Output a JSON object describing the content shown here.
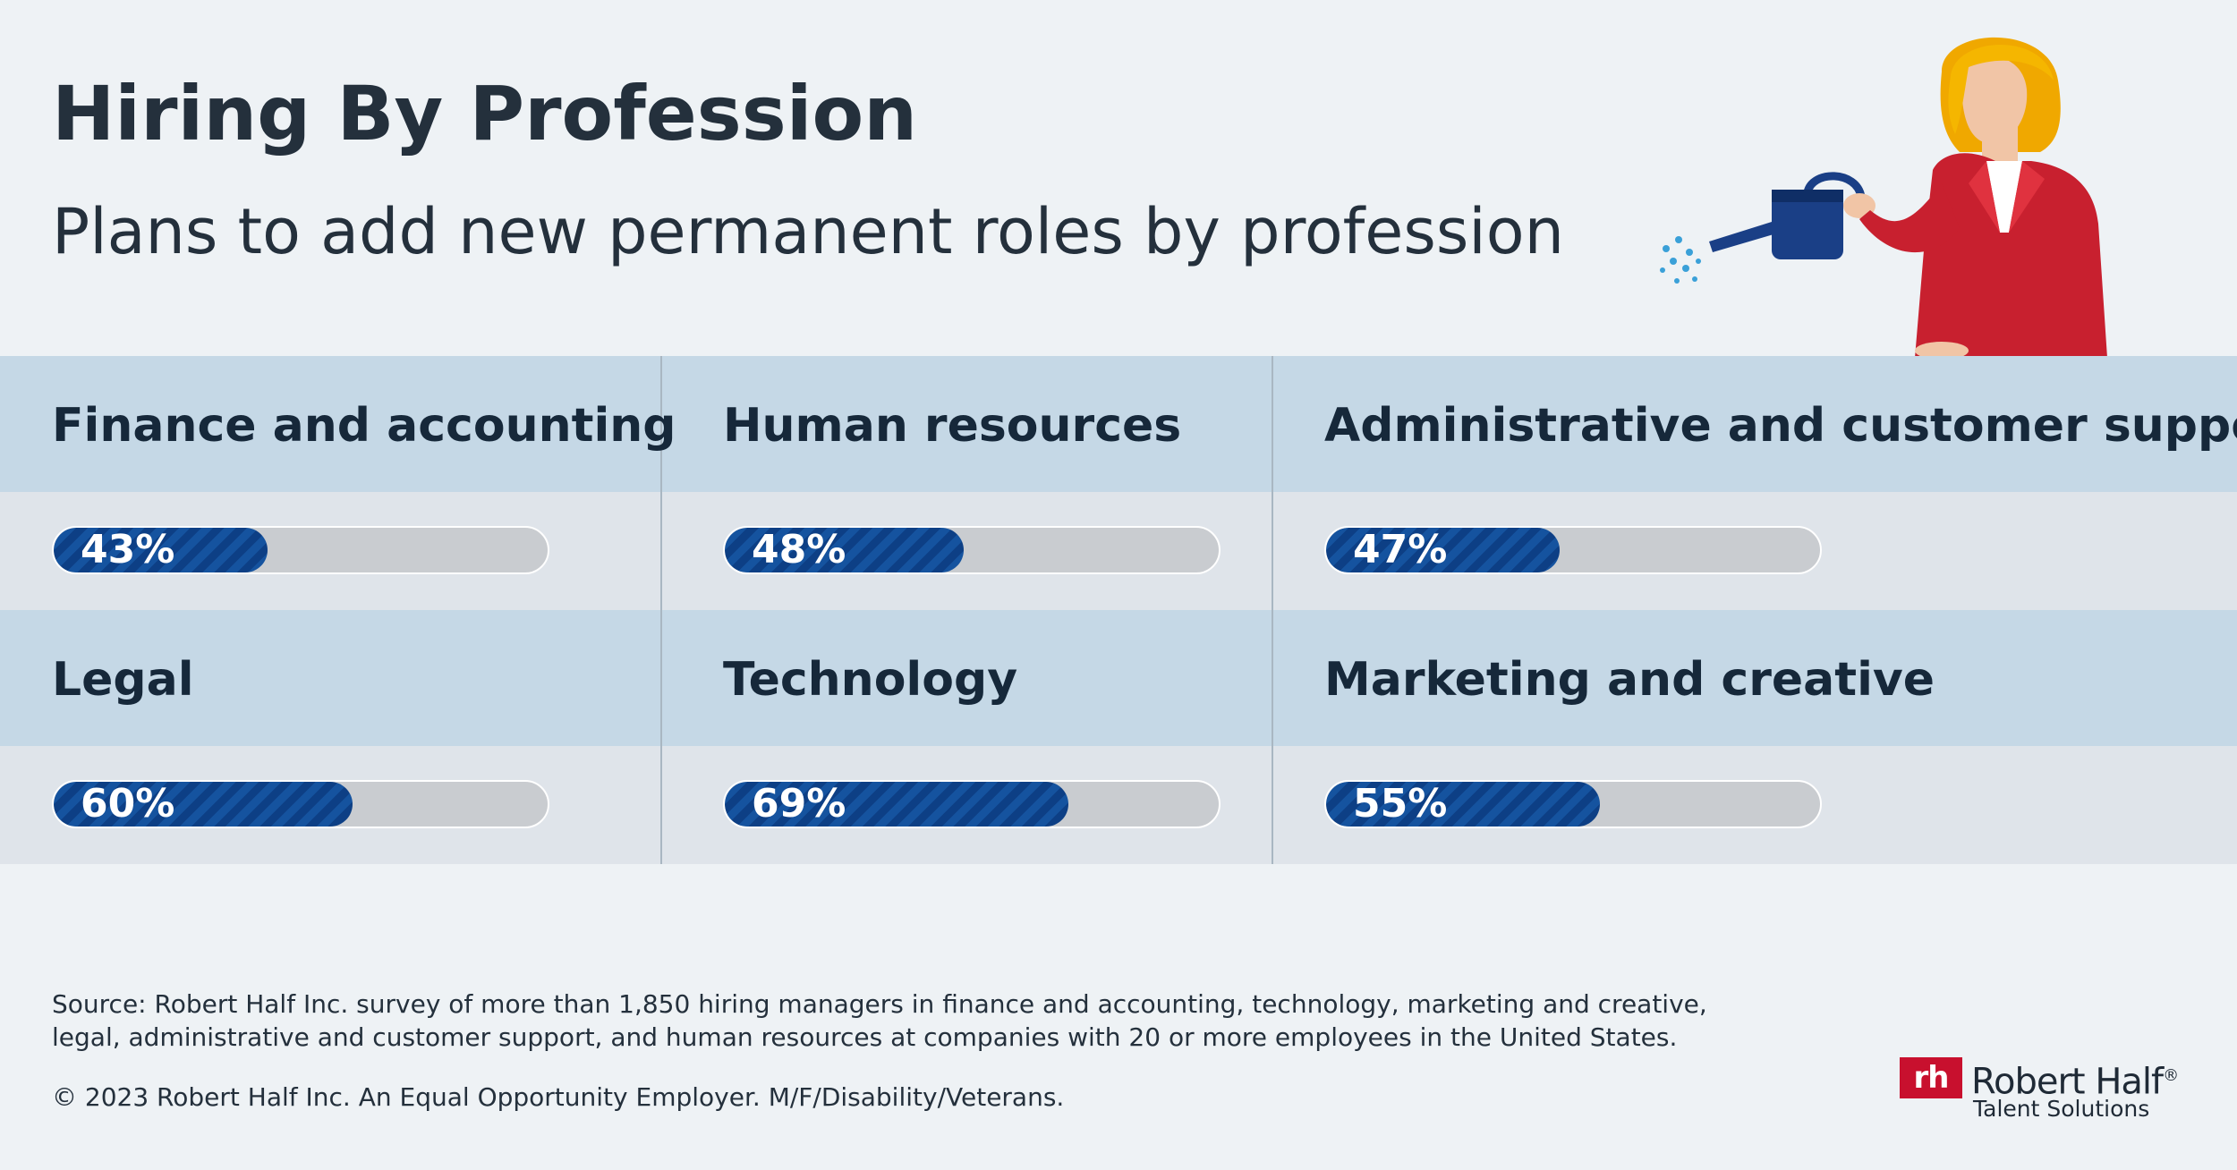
{
  "header": {
    "title": "Hiring By Profession",
    "subtitle": "Plans to add new permanent roles by profession"
  },
  "chart_data": {
    "type": "bar",
    "title": "Hiring By Profession",
    "subtitle": "Plans to add new permanent roles by profession",
    "categories": [
      "Finance and accounting",
      "Human resources",
      "Administrative and customer support",
      "Legal",
      "Technology",
      "Marketing and creative"
    ],
    "values": [
      43,
      48,
      47,
      60,
      69,
      55
    ],
    "labels": [
      "43%",
      "48%",
      "47%",
      "60%",
      "69%",
      "55%"
    ],
    "ylim": [
      0,
      100
    ],
    "colors": {
      "fill": "#0d3f85",
      "fill_stripe": "#15539f",
      "track": "#c9ccd0"
    }
  },
  "footer": {
    "source": "Source: Robert Half Inc. survey of more than 1,850  hiring managers in finance and accounting, technology, marketing and creative, legal, administrative and customer support, and human resources at companies with 20 or more employees in the United States.",
    "copyright": "© 2023 Robert Half Inc. An Equal Opportunity Employer. M/F/Disability/Veterans."
  },
  "logo": {
    "mark": "rh",
    "name": "Robert Half",
    "trademark": "®",
    "tagline": "Talent Solutions"
  },
  "illustration": {
    "icon": "woman-with-watering-can-icon"
  }
}
